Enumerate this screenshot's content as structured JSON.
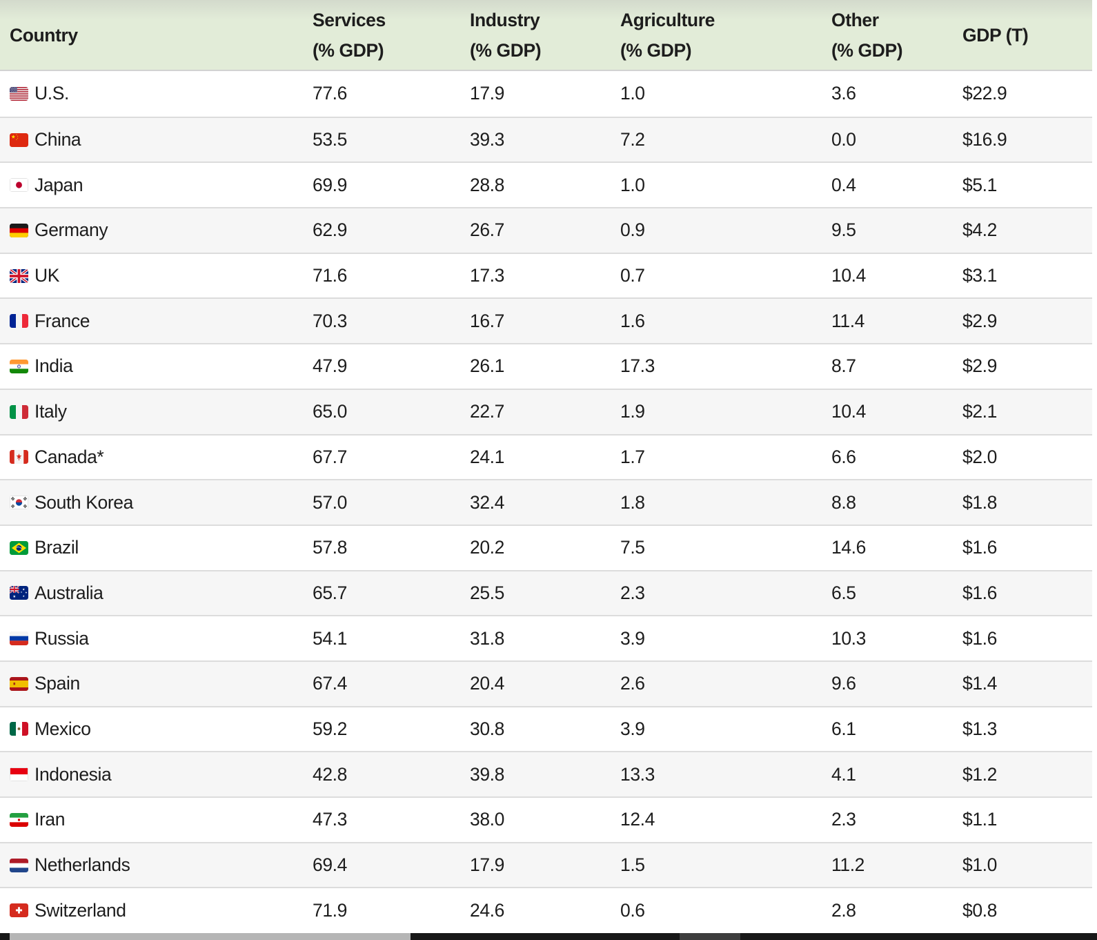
{
  "chart_data": {
    "type": "table",
    "columns": [
      {
        "id": "country",
        "line1": "Country",
        "line2": ""
      },
      {
        "id": "services",
        "line1": "Services",
        "line2": "(% GDP)"
      },
      {
        "id": "industry",
        "line1": "Industry",
        "line2": "(% GDP)"
      },
      {
        "id": "agriculture",
        "line1": "Agriculture",
        "line2": "(% GDP)"
      },
      {
        "id": "other",
        "line1": "Other",
        "line2": "(% GDP)"
      },
      {
        "id": "gdp",
        "line1": "GDP (T)",
        "line2": ""
      }
    ],
    "rows": [
      {
        "flag": "us",
        "country": "U.S.",
        "services": "77.6",
        "industry": "17.9",
        "agriculture": "1.0",
        "other": "3.6",
        "gdp": "$22.9"
      },
      {
        "flag": "cn",
        "country": "China",
        "services": "53.5",
        "industry": "39.3",
        "agriculture": "7.2",
        "other": "0.0",
        "gdp": "$16.9"
      },
      {
        "flag": "jp",
        "country": "Japan",
        "services": "69.9",
        "industry": "28.8",
        "agriculture": "1.0",
        "other": "0.4",
        "gdp": "$5.1"
      },
      {
        "flag": "de",
        "country": "Germany",
        "services": "62.9",
        "industry": "26.7",
        "agriculture": "0.9",
        "other": "9.5",
        "gdp": "$4.2"
      },
      {
        "flag": "uk",
        "country": "UK",
        "services": "71.6",
        "industry": "17.3",
        "agriculture": "0.7",
        "other": "10.4",
        "gdp": "$3.1"
      },
      {
        "flag": "fr",
        "country": "France",
        "services": "70.3",
        "industry": "16.7",
        "agriculture": "1.6",
        "other": "11.4",
        "gdp": "$2.9"
      },
      {
        "flag": "in",
        "country": "India",
        "services": "47.9",
        "industry": "26.1",
        "agriculture": "17.3",
        "other": "8.7",
        "gdp": "$2.9"
      },
      {
        "flag": "it",
        "country": "Italy",
        "services": "65.0",
        "industry": "22.7",
        "agriculture": "1.9",
        "other": "10.4",
        "gdp": "$2.1"
      },
      {
        "flag": "ca",
        "country": "Canada*",
        "services": "67.7",
        "industry": "24.1",
        "agriculture": "1.7",
        "other": "6.6",
        "gdp": "$2.0"
      },
      {
        "flag": "kr",
        "country": "South Korea",
        "services": "57.0",
        "industry": "32.4",
        "agriculture": "1.8",
        "other": "8.8",
        "gdp": "$1.8"
      },
      {
        "flag": "br",
        "country": "Brazil",
        "services": "57.8",
        "industry": "20.2",
        "agriculture": "7.5",
        "other": "14.6",
        "gdp": "$1.6"
      },
      {
        "flag": "au",
        "country": "Australia",
        "services": "65.7",
        "industry": "25.5",
        "agriculture": "2.3",
        "other": "6.5",
        "gdp": "$1.6"
      },
      {
        "flag": "ru",
        "country": "Russia",
        "services": "54.1",
        "industry": "31.8",
        "agriculture": "3.9",
        "other": "10.3",
        "gdp": "$1.6"
      },
      {
        "flag": "es",
        "country": "Spain",
        "services": "67.4",
        "industry": "20.4",
        "agriculture": "2.6",
        "other": "9.6",
        "gdp": "$1.4"
      },
      {
        "flag": "mx",
        "country": "Mexico",
        "services": "59.2",
        "industry": "30.8",
        "agriculture": "3.9",
        "other": "6.1",
        "gdp": "$1.3"
      },
      {
        "flag": "id",
        "country": "Indonesia",
        "services": "42.8",
        "industry": "39.8",
        "agriculture": "13.3",
        "other": "4.1",
        "gdp": "$1.2"
      },
      {
        "flag": "ir",
        "country": "Iran",
        "services": "47.3",
        "industry": "38.0",
        "agriculture": "12.4",
        "other": "2.3",
        "gdp": "$1.1"
      },
      {
        "flag": "nl",
        "country": "Netherlands",
        "services": "69.4",
        "industry": "17.9",
        "agriculture": "1.5",
        "other": "11.2",
        "gdp": "$1.0"
      },
      {
        "flag": "ch",
        "country": "Switzerland",
        "services": "71.9",
        "industry": "24.6",
        "agriculture": "0.6",
        "other": "2.8",
        "gdp": "$0.8"
      }
    ]
  },
  "colors": {
    "header_bg": "#e2ecd8",
    "header_bg_top": "#d3dacc",
    "row_alt_bg": "#f6f6f6",
    "row_border": "#dcdcdc",
    "text": "#1d1d1d",
    "scrollbar_track": "#181818",
    "scrollbar_thumb": "#b5b5b5",
    "scrollbar_segment": "#3d3d3d"
  }
}
